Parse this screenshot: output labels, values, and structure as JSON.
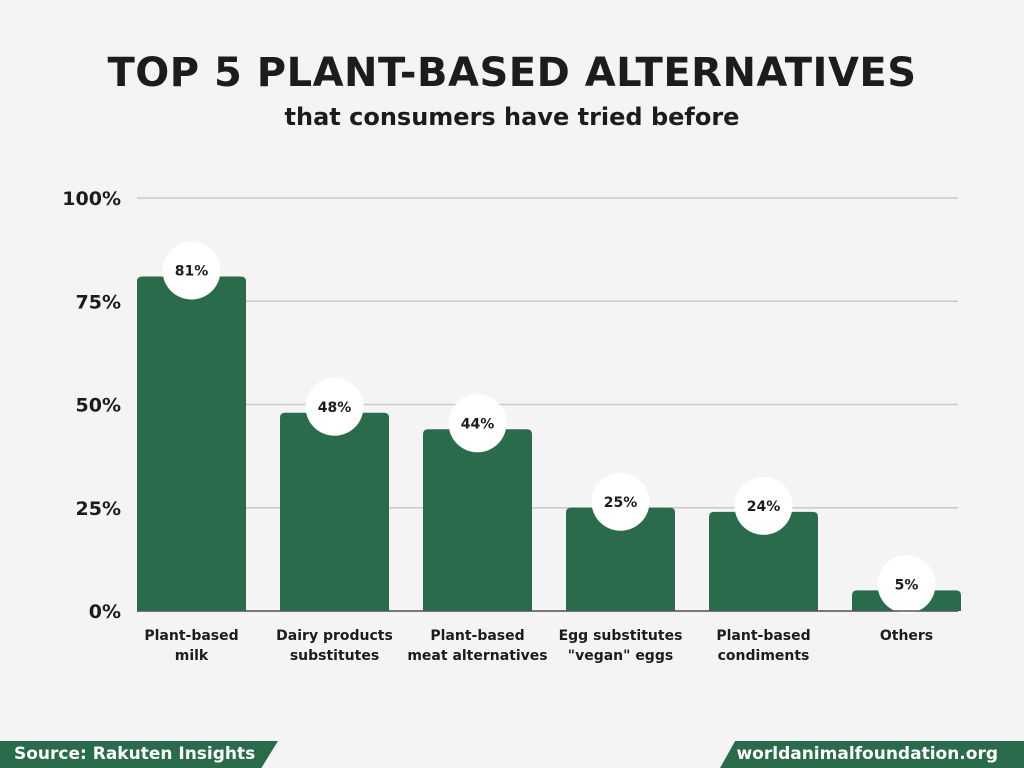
{
  "chart_data": {
    "type": "bar",
    "title": "TOP 5 PLANT-BASED ALTERNATIVES",
    "subtitle": "that consumers have tried before",
    "categories": [
      [
        "Plant-based",
        "milk"
      ],
      [
        "Dairy products",
        "substitutes"
      ],
      [
        "Plant-based",
        "meat alternatives"
      ],
      [
        "Egg substitutes",
        "\"vegan\" eggs"
      ],
      [
        "Plant-based",
        "condiments"
      ],
      [
        "Others"
      ]
    ],
    "values": [
      81,
      48,
      44,
      25,
      24,
      5
    ],
    "value_labels": [
      "81%",
      "48%",
      "44%",
      "25%",
      "24%",
      "5%"
    ],
    "yticks": [
      0,
      25,
      50,
      75,
      100
    ],
    "ytick_labels": [
      "0%",
      "25%",
      "50%",
      "75%",
      "100%"
    ],
    "ylim": [
      0,
      100
    ],
    "grid": true,
    "xlabel": "",
    "ylabel": ""
  },
  "footer": {
    "source": "Source: Rakuten Insights",
    "site": "worldanimalfoundation.org"
  },
  "colors": {
    "bar": "#2a6b4b",
    "grid": "#c9c9c9",
    "text": "#1c1c1c",
    "bubble": "#ffffff"
  }
}
